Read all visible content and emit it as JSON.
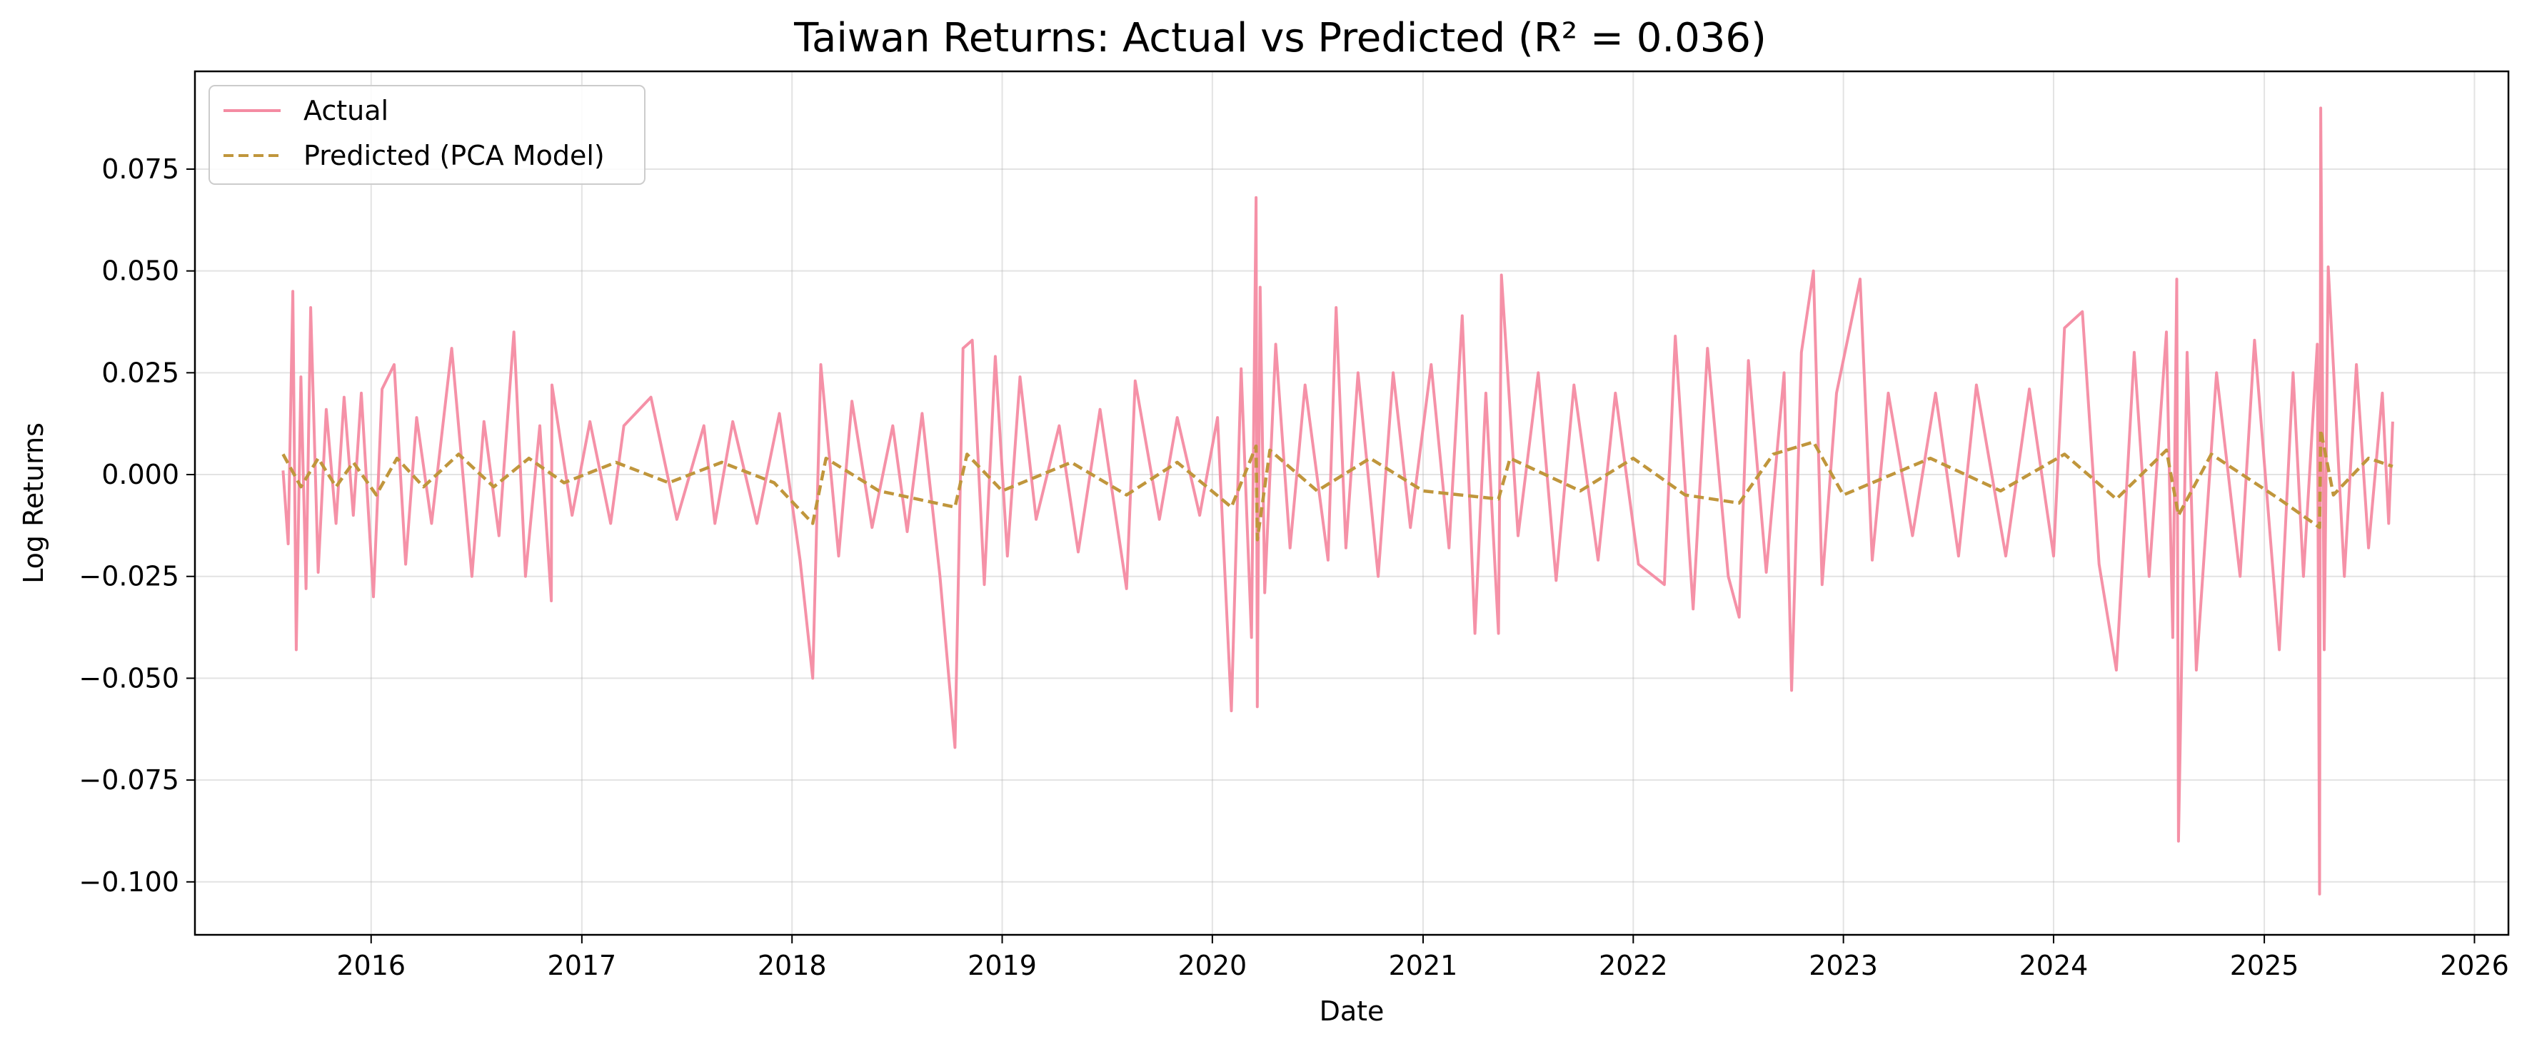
{
  "chart_data": {
    "type": "line",
    "title": "Taiwan Returns: Actual vs Predicted (R² = 0.036)",
    "xlabel": "Date",
    "ylabel": "Log Returns",
    "x_range": [
      "2015-03-01",
      "2026-03-01"
    ],
    "ylim": [
      -0.113,
      0.099
    ],
    "x_ticks": [
      "2016",
      "2017",
      "2018",
      "2019",
      "2020",
      "2021",
      "2022",
      "2023",
      "2024",
      "2025",
      "2026"
    ],
    "y_ticks": [
      "0.075",
      "0.050",
      "0.025",
      "0.000",
      "−0.025",
      "−0.050",
      "−0.075",
      "−0.100"
    ],
    "grid": true,
    "legend_position": "top-left",
    "series": [
      {
        "name": "Actual",
        "style": "solid",
        "color": "#f48ba2",
        "points": [
          [
            "2015-08-01",
            0.001
          ],
          [
            "2015-08-10",
            -0.017
          ],
          [
            "2015-08-18",
            0.045
          ],
          [
            "2015-08-24",
            -0.043
          ],
          [
            "2015-09-01",
            0.024
          ],
          [
            "2015-09-10",
            -0.028
          ],
          [
            "2015-09-18",
            0.041
          ],
          [
            "2015-10-01",
            -0.024
          ],
          [
            "2015-10-15",
            0.016
          ],
          [
            "2015-11-01",
            -0.012
          ],
          [
            "2015-11-15",
            0.019
          ],
          [
            "2015-12-01",
            -0.01
          ],
          [
            "2015-12-15",
            0.02
          ],
          [
            "2016-01-05",
            -0.03
          ],
          [
            "2016-01-20",
            0.021
          ],
          [
            "2016-02-10",
            0.027
          ],
          [
            "2016-03-01",
            -0.022
          ],
          [
            "2016-03-20",
            0.014
          ],
          [
            "2016-04-15",
            -0.012
          ],
          [
            "2016-05-20",
            0.031
          ],
          [
            "2016-06-24",
            -0.025
          ],
          [
            "2016-07-15",
            0.013
          ],
          [
            "2016-08-10",
            -0.015
          ],
          [
            "2016-09-05",
            0.035
          ],
          [
            "2016-09-25",
            -0.025
          ],
          [
            "2016-10-20",
            0.012
          ],
          [
            "2016-11-09",
            -0.031
          ],
          [
            "2016-11-10",
            0.022
          ],
          [
            "2016-12-15",
            -0.01
          ],
          [
            "2017-01-15",
            0.013
          ],
          [
            "2017-02-20",
            -0.012
          ],
          [
            "2017-03-15",
            0.012
          ],
          [
            "2017-05-01",
            0.019
          ],
          [
            "2017-06-15",
            -0.011
          ],
          [
            "2017-08-01",
            0.012
          ],
          [
            "2017-08-20",
            -0.012
          ],
          [
            "2017-09-20",
            0.013
          ],
          [
            "2017-11-01",
            -0.012
          ],
          [
            "2017-12-10",
            0.015
          ],
          [
            "2018-01-15",
            -0.021
          ],
          [
            "2018-02-06",
            -0.05
          ],
          [
            "2018-02-20",
            0.027
          ],
          [
            "2018-03-23",
            -0.02
          ],
          [
            "2018-04-15",
            0.018
          ],
          [
            "2018-05-20",
            -0.013
          ],
          [
            "2018-06-25",
            0.012
          ],
          [
            "2018-07-20",
            -0.014
          ],
          [
            "2018-08-15",
            0.015
          ],
          [
            "2018-09-15",
            -0.025
          ],
          [
            "2018-10-11",
            -0.067
          ],
          [
            "2018-10-25",
            0.031
          ],
          [
            "2018-11-10",
            0.033
          ],
          [
            "2018-12-01",
            -0.027
          ],
          [
            "2018-12-20",
            0.029
          ],
          [
            "2019-01-10",
            -0.02
          ],
          [
            "2019-02-01",
            0.024
          ],
          [
            "2019-03-01",
            -0.011
          ],
          [
            "2019-04-10",
            0.012
          ],
          [
            "2019-05-13",
            -0.019
          ],
          [
            "2019-06-20",
            0.016
          ],
          [
            "2019-08-05",
            -0.028
          ],
          [
            "2019-08-20",
            0.023
          ],
          [
            "2019-10-01",
            -0.011
          ],
          [
            "2019-11-01",
            0.014
          ],
          [
            "2019-12-10",
            -0.01
          ],
          [
            "2020-01-10",
            0.014
          ],
          [
            "2020-02-03",
            -0.058
          ],
          [
            "2020-02-20",
            0.026
          ],
          [
            "2020-03-09",
            -0.04
          ],
          [
            "2020-03-17",
            0.068
          ],
          [
            "2020-03-19",
            -0.057
          ],
          [
            "2020-03-24",
            0.046
          ],
          [
            "2020-04-01",
            -0.029
          ],
          [
            "2020-04-20",
            0.032
          ],
          [
            "2020-05-15",
            -0.018
          ],
          [
            "2020-06-10",
            0.022
          ],
          [
            "2020-07-20",
            -0.021
          ],
          [
            "2020-08-03",
            0.041
          ],
          [
            "2020-08-20",
            -0.018
          ],
          [
            "2020-09-10",
            0.025
          ],
          [
            "2020-10-15",
            -0.025
          ],
          [
            "2020-11-10",
            0.025
          ],
          [
            "2020-12-10",
            -0.013
          ],
          [
            "2021-01-15",
            0.027
          ],
          [
            "2021-02-15",
            -0.018
          ],
          [
            "2021-03-10",
            0.039
          ],
          [
            "2021-04-01",
            -0.039
          ],
          [
            "2021-04-20",
            0.02
          ],
          [
            "2021-05-12",
            -0.039
          ],
          [
            "2021-05-17",
            0.049
          ],
          [
            "2021-06-15",
            -0.015
          ],
          [
            "2021-07-20",
            0.025
          ],
          [
            "2021-08-20",
            -0.026
          ],
          [
            "2021-09-20",
            0.022
          ],
          [
            "2021-11-01",
            -0.021
          ],
          [
            "2021-12-01",
            0.02
          ],
          [
            "2022-01-10",
            -0.022
          ],
          [
            "2022-02-24",
            -0.027
          ],
          [
            "2022-03-15",
            0.034
          ],
          [
            "2022-04-15",
            -0.033
          ],
          [
            "2022-05-10",
            0.031
          ],
          [
            "2022-06-15",
            -0.025
          ],
          [
            "2022-07-04",
            -0.035
          ],
          [
            "2022-07-20",
            0.028
          ],
          [
            "2022-08-20",
            -0.024
          ],
          [
            "2022-09-20",
            0.025
          ],
          [
            "2022-10-03",
            -0.053
          ],
          [
            "2022-10-20",
            0.03
          ],
          [
            "2022-11-10",
            0.05
          ],
          [
            "2022-11-25",
            -0.027
          ],
          [
            "2022-12-20",
            0.02
          ],
          [
            "2023-01-30",
            0.048
          ],
          [
            "2023-02-20",
            -0.021
          ],
          [
            "2023-03-20",
            0.02
          ],
          [
            "2023-05-01",
            -0.015
          ],
          [
            "2023-06-10",
            0.02
          ],
          [
            "2023-07-20",
            -0.02
          ],
          [
            "2023-08-20",
            0.022
          ],
          [
            "2023-10-10",
            -0.02
          ],
          [
            "2023-11-20",
            0.021
          ],
          [
            "2024-01-01",
            -0.02
          ],
          [
            "2024-01-20",
            0.036
          ],
          [
            "2024-02-20",
            0.04
          ],
          [
            "2024-03-20",
            -0.022
          ],
          [
            "2024-04-19",
            -0.048
          ],
          [
            "2024-05-20",
            0.03
          ],
          [
            "2024-06-15",
            -0.025
          ],
          [
            "2024-07-15",
            0.035
          ],
          [
            "2024-07-26",
            -0.04
          ],
          [
            "2024-08-02",
            0.048
          ],
          [
            "2024-08-05",
            -0.09
          ],
          [
            "2024-08-20",
            0.03
          ],
          [
            "2024-09-05",
            -0.048
          ],
          [
            "2024-10-10",
            0.025
          ],
          [
            "2024-11-20",
            -0.025
          ],
          [
            "2024-12-15",
            0.033
          ],
          [
            "2025-01-27",
            -0.043
          ],
          [
            "2025-02-20",
            0.025
          ],
          [
            "2025-03-10",
            -0.025
          ],
          [
            "2025-04-03",
            0.032
          ],
          [
            "2025-04-07",
            -0.103
          ],
          [
            "2025-04-09",
            0.09
          ],
          [
            "2025-04-15",
            -0.043
          ],
          [
            "2025-04-22",
            0.051
          ],
          [
            "2025-05-20",
            -0.025
          ],
          [
            "2025-06-10",
            0.027
          ],
          [
            "2025-07-01",
            -0.018
          ],
          [
            "2025-07-25",
            0.02
          ],
          [
            "2025-08-05",
            -0.012
          ],
          [
            "2025-08-12",
            0.013
          ]
        ]
      },
      {
        "name": "Predicted (PCA Model)",
        "style": "dashed",
        "color": "#c0963c",
        "points": [
          [
            "2015-08-01",
            0.005
          ],
          [
            "2015-09-01",
            -0.003
          ],
          [
            "2015-10-01",
            0.004
          ],
          [
            "2015-11-01",
            -0.003
          ],
          [
            "2015-12-01",
            0.003
          ],
          [
            "2016-01-10",
            -0.005
          ],
          [
            "2016-02-15",
            0.004
          ],
          [
            "2016-04-01",
            -0.003
          ],
          [
            "2016-06-01",
            0.005
          ],
          [
            "2016-08-01",
            -0.003
          ],
          [
            "2016-10-01",
            0.004
          ],
          [
            "2016-12-01",
            -0.002
          ],
          [
            "2017-03-01",
            0.003
          ],
          [
            "2017-06-01",
            -0.002
          ],
          [
            "2017-09-01",
            0.003
          ],
          [
            "2017-12-01",
            -0.002
          ],
          [
            "2018-02-06",
            -0.012
          ],
          [
            "2018-03-01",
            0.004
          ],
          [
            "2018-06-01",
            -0.004
          ],
          [
            "2018-10-11",
            -0.008
          ],
          [
            "2018-11-01",
            0.005
          ],
          [
            "2019-01-01",
            -0.004
          ],
          [
            "2019-05-01",
            0.003
          ],
          [
            "2019-08-05",
            -0.005
          ],
          [
            "2019-11-01",
            0.003
          ],
          [
            "2020-02-03",
            -0.008
          ],
          [
            "2020-03-17",
            0.007
          ],
          [
            "2020-03-19",
            -0.016
          ],
          [
            "2020-04-10",
            0.006
          ],
          [
            "2020-07-01",
            -0.004
          ],
          [
            "2020-10-01",
            0.004
          ],
          [
            "2021-01-01",
            -0.004
          ],
          [
            "2021-05-12",
            -0.006
          ],
          [
            "2021-06-01",
            0.004
          ],
          [
            "2021-10-01",
            -0.004
          ],
          [
            "2022-01-01",
            0.004
          ],
          [
            "2022-04-01",
            -0.005
          ],
          [
            "2022-07-04",
            -0.007
          ],
          [
            "2022-09-01",
            0.005
          ],
          [
            "2022-11-10",
            0.008
          ],
          [
            "2023-01-01",
            -0.005
          ],
          [
            "2023-06-01",
            0.004
          ],
          [
            "2023-10-01",
            -0.004
          ],
          [
            "2024-01-20",
            0.005
          ],
          [
            "2024-04-19",
            -0.006
          ],
          [
            "2024-07-15",
            0.006
          ],
          [
            "2024-08-05",
            -0.01
          ],
          [
            "2024-10-01",
            0.005
          ],
          [
            "2025-01-27",
            -0.006
          ],
          [
            "2025-04-07",
            -0.013
          ],
          [
            "2025-04-09",
            0.011
          ],
          [
            "2025-05-01",
            -0.005
          ],
          [
            "2025-07-01",
            0.004
          ],
          [
            "2025-08-12",
            0.002
          ]
        ]
      }
    ]
  }
}
